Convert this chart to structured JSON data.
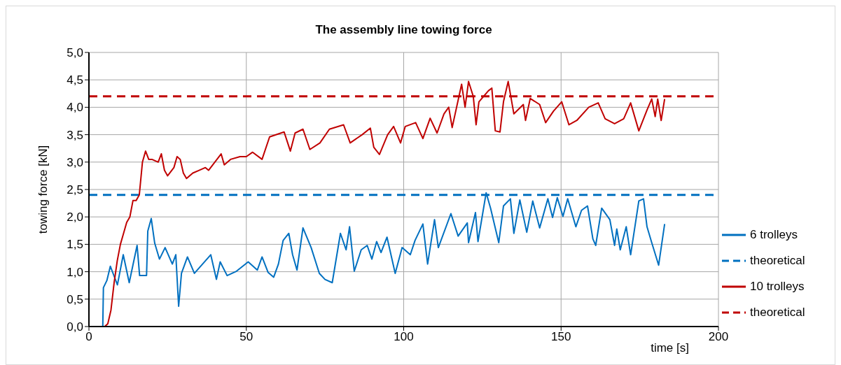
{
  "chart_data": {
    "type": "line",
    "title": "The assembly line towing force",
    "xlabel": "time [s]",
    "ylabel": "towing force [kN]",
    "xlim": [
      0,
      200
    ],
    "xticks": [
      0,
      50,
      100,
      150,
      200
    ],
    "ylim": [
      0,
      5
    ],
    "yticks": [
      {
        "value": 0,
        "label": "0,0"
      },
      {
        "value": 0.5,
        "label": "0,5"
      },
      {
        "value": 1,
        "label": "1,0"
      },
      {
        "value": 1.5,
        "label": "1,5"
      },
      {
        "value": 2,
        "label": "2,0"
      },
      {
        "value": 2.5,
        "label": "2,5"
      },
      {
        "value": 3,
        "label": "3,0"
      },
      {
        "value": 3.5,
        "label": "3,5"
      },
      {
        "value": 4,
        "label": "4,0"
      },
      {
        "value": 4.5,
        "label": "4,5"
      },
      {
        "value": 5,
        "label": "5,0"
      }
    ],
    "grid": true,
    "legend": "right",
    "marker": "none",
    "series": [
      {
        "name": "6 trolleys",
        "color": "#0070c0",
        "line_style": "solid",
        "x": [
          0,
          4.4,
          4.6,
          5.7,
          6.8,
          9.05,
          10.9,
          12.8,
          15.3,
          16.1,
          18.3,
          18.7,
          19.8,
          20.9,
          22.4,
          24.2,
          26.5,
          27.6,
          28.5,
          29.4,
          31.3,
          33.5,
          38.7,
          40.5,
          41.7,
          43.9,
          46.9,
          50.6,
          53.5,
          55,
          56.9,
          58.7,
          60.2,
          61.7,
          63.5,
          64.7,
          66.1,
          68,
          70.6,
          73.2,
          75,
          77.3,
          79.9,
          81.7,
          82.8,
          84.3,
          86.5,
          88.4,
          89.9,
          91.4,
          92.8,
          94.7,
          97.3,
          99.5,
          102.1,
          103.6,
          106.1,
          107.6,
          109.8,
          111,
          115,
          117.3,
          120.2,
          120.6,
          122.8,
          123.6,
          126.2,
          127.6,
          130.2,
          131.7,
          133.9,
          135,
          136.9,
          139.1,
          141,
          143.2,
          145.8,
          147.3,
          148.8,
          150.6,
          152.1,
          154.7,
          156.5,
          158.4,
          160.1,
          161,
          162.9,
          165.5,
          167,
          167.7,
          168.8,
          170.7,
          172.1,
          174.7,
          176.2,
          177.3,
          178.8,
          181,
          182.9
        ],
        "values": [
          0,
          0,
          0.71,
          0.84,
          1.1,
          0.76,
          1.31,
          0.8,
          1.48,
          0.93,
          0.93,
          1.74,
          1.97,
          1.52,
          1.23,
          1.44,
          1.14,
          1.31,
          0.37,
          0.97,
          1.27,
          0.97,
          1.31,
          0.86,
          1.18,
          0.93,
          1.01,
          1.18,
          1.03,
          1.27,
          0.99,
          0.9,
          1.14,
          1.57,
          1.7,
          1.31,
          1.03,
          1.8,
          1.44,
          0.97,
          0.86,
          0.8,
          1.7,
          1.4,
          1.82,
          1.01,
          1.4,
          1.48,
          1.23,
          1.55,
          1.35,
          1.63,
          0.97,
          1.44,
          1.31,
          1.57,
          1.87,
          1.14,
          1.95,
          1.44,
          2.06,
          1.65,
          1.89,
          1.53,
          2.08,
          1.55,
          2.44,
          2.16,
          1.53,
          2.2,
          2.33,
          1.7,
          2.31,
          1.72,
          2.29,
          1.8,
          2.33,
          1.99,
          2.35,
          2.01,
          2.33,
          1.82,
          2.12,
          2.2,
          1.6,
          1.48,
          2.16,
          1.95,
          1.48,
          1.78,
          1.4,
          1.82,
          1.31,
          2.29,
          2.33,
          1.82,
          1.53,
          1.12,
          1.87
        ]
      },
      {
        "name": "theoretical",
        "color": "#0070c0",
        "line_style": "dashed",
        "x": [
          0,
          200
        ],
        "values": [
          2.4,
          2.4
        ]
      },
      {
        "name": "10 trolleys",
        "color": "#c00000",
        "line_style": "solid",
        "x": [
          0,
          5,
          6,
          7,
          8,
          9,
          10,
          11,
          12,
          13,
          14,
          15,
          16,
          17,
          18,
          19,
          20,
          22,
          23,
          24,
          25,
          27,
          28,
          29,
          30,
          31,
          33,
          35,
          37,
          38,
          40,
          42,
          43,
          45,
          48,
          50,
          52,
          55,
          57.4,
          62,
          64,
          65.5,
          68,
          70.2,
          73.4,
          76.4,
          80.9,
          83,
          86.8,
          89.4,
          90.5,
          92.3,
          94.9,
          96.8,
          99,
          100.5,
          103.8,
          106.1,
          108.4,
          110.6,
          112.8,
          114.3,
          115.4,
          118.4,
          119.5,
          120.6,
          122.1,
          123,
          123.9,
          126.9,
          128,
          129.1,
          130.6,
          131.7,
          133.2,
          135,
          138,
          138.7,
          140.2,
          143.2,
          145.1,
          147.6,
          150.2,
          152.5,
          155,
          158.8,
          161.8,
          164,
          167,
          169.9,
          172.1,
          174.7,
          177.3,
          178.8,
          179.9,
          180.7,
          181.8,
          182.9
        ],
        "values": [
          0,
          0,
          0.05,
          0.3,
          0.8,
          1.2,
          1.5,
          1.7,
          1.9,
          2.0,
          2.3,
          2.3,
          2.4,
          3.0,
          3.2,
          3.05,
          3.05,
          3.0,
          3.15,
          2.85,
          2.75,
          2.9,
          3.1,
          3.05,
          2.8,
          2.7,
          2.8,
          2.85,
          2.9,
          2.85,
          3.0,
          3.15,
          2.95,
          3.05,
          3.1,
          3.1,
          3.18,
          3.05,
          3.46,
          3.55,
          3.2,
          3.53,
          3.6,
          3.23,
          3.35,
          3.6,
          3.68,
          3.35,
          3.5,
          3.62,
          3.27,
          3.14,
          3.5,
          3.65,
          3.35,
          3.65,
          3.72,
          3.43,
          3.8,
          3.53,
          3.88,
          4.0,
          3.63,
          4.42,
          4.0,
          4.47,
          4.2,
          3.68,
          4.1,
          4.3,
          4.35,
          3.57,
          3.55,
          4.1,
          4.47,
          3.88,
          4.05,
          3.76,
          4.16,
          4.05,
          3.72,
          3.93,
          4.1,
          3.68,
          3.76,
          4.0,
          4.08,
          3.79,
          3.7,
          3.79,
          4.08,
          3.57,
          3.95,
          4.15,
          3.83,
          4.15,
          3.76,
          4.15
        ]
      },
      {
        "name": "theoretical",
        "color": "#c00000",
        "line_style": "dashed",
        "x": [
          0,
          200
        ],
        "values": [
          4.2,
          4.2
        ]
      }
    ]
  }
}
